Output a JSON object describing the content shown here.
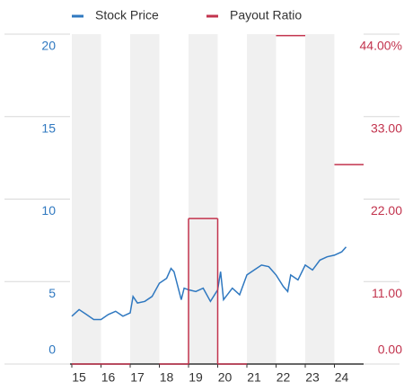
{
  "chart_data": {
    "type": "line",
    "xlim": [
      2015,
      2025
    ],
    "xticks": [
      {
        "value": 2015,
        "label": "15"
      },
      {
        "value": 2016,
        "label": "16"
      },
      {
        "value": 2017,
        "label": "17"
      },
      {
        "value": 2018,
        "label": "18"
      },
      {
        "value": 2019,
        "label": "19"
      },
      {
        "value": 2020,
        "label": "20"
      },
      {
        "value": 2021,
        "label": "21"
      },
      {
        "value": 2022,
        "label": "22"
      },
      {
        "value": 2023,
        "label": "23"
      },
      {
        "value": 2024,
        "label": "24"
      }
    ],
    "ylim": [
      0,
      20
    ],
    "yticks": [
      0,
      5,
      10,
      15,
      20
    ],
    "y2lim": [
      0,
      44
    ],
    "y2ticks": [
      {
        "value": 0,
        "label": "0.00"
      },
      {
        "value": 11,
        "label": "11.00"
      },
      {
        "value": 22,
        "label": "22.00"
      },
      {
        "value": 33,
        "label": "33.00"
      },
      {
        "value": 44,
        "label": "44.00%"
      }
    ],
    "grid": true,
    "series": [
      {
        "name": "Stock Price",
        "color": "#2f78c0",
        "x": [
          2015.0,
          2015.25,
          2015.5,
          2015.75,
          2016.0,
          2016.25,
          2016.5,
          2016.75,
          2017.0,
          2017.1,
          2017.25,
          2017.5,
          2017.75,
          2018.0,
          2018.25,
          2018.4,
          2018.5,
          2018.75,
          2018.85,
          2019.0,
          2019.25,
          2019.5,
          2019.75,
          2020.0,
          2020.1,
          2020.2,
          2020.5,
          2020.75,
          2021.0,
          2021.25,
          2021.5,
          2021.75,
          2022.0,
          2022.25,
          2022.4,
          2022.5,
          2022.75,
          2023.0,
          2023.25,
          2023.5,
          2023.75,
          2024.0,
          2024.25,
          2024.4
        ],
        "values": [
          2.9,
          3.3,
          3.0,
          2.7,
          2.7,
          3.0,
          3.2,
          2.9,
          3.1,
          4.1,
          3.7,
          3.8,
          4.1,
          4.9,
          5.2,
          5.8,
          5.6,
          3.9,
          4.6,
          4.5,
          4.4,
          4.6,
          3.8,
          4.5,
          5.6,
          3.9,
          4.6,
          4.2,
          5.4,
          5.7,
          6.0,
          5.9,
          5.4,
          4.7,
          4.4,
          5.4,
          5.1,
          6.0,
          5.7,
          6.3,
          6.5,
          6.6,
          6.8,
          7.1
        ]
      },
      {
        "name": "Payout Ratio",
        "color": "#c2334d",
        "axis": "y2",
        "x": [
          2015,
          2016,
          2017,
          2018,
          2019,
          2020,
          2021,
          2022,
          2023,
          2024
        ],
        "values": [
          0,
          0,
          null,
          0,
          19.4,
          0,
          null,
          43.8,
          null,
          26.6
        ]
      }
    ]
  }
}
